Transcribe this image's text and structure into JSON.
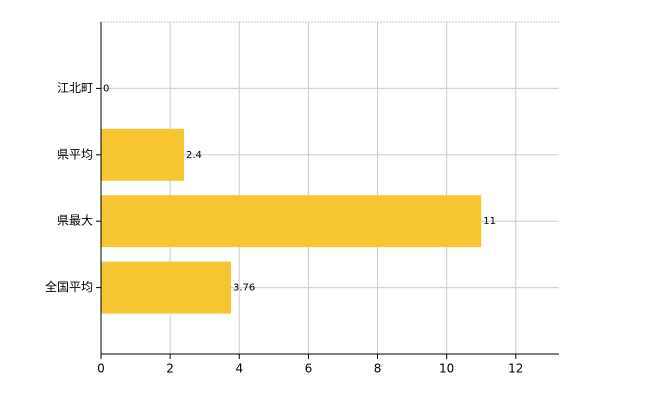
{
  "chart_data": {
    "type": "bar",
    "orientation": "horizontal",
    "categories": [
      "江北町",
      "県平均",
      "県最大",
      "全国平均"
    ],
    "values": [
      0,
      2.4,
      11,
      3.76
    ],
    "color": "#f7c531",
    "xlim": [
      0,
      13.25
    ],
    "xticks": [
      0,
      2,
      4,
      6,
      8,
      10,
      12
    ],
    "grid": true
  }
}
